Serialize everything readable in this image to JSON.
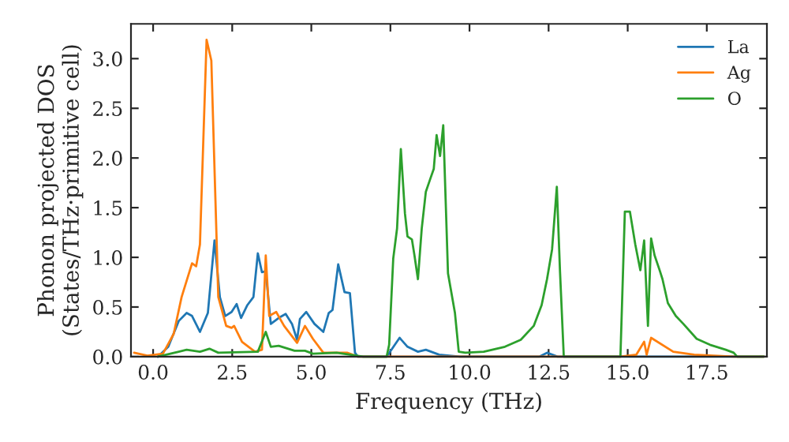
{
  "chart_data": {
    "type": "line",
    "xlabel": "Frequency (THz)",
    "ylabel": "Phonon projected DOS\n(States/THz·primitive cell)",
    "xlim": [
      -0.7,
      19.4
    ],
    "ylim": [
      0,
      3.35
    ],
    "xticks": [
      {
        "value": 0,
        "label": "0.0"
      },
      2.5,
      {
        "value": 5,
        "label": "5.0"
      },
      7.5,
      {
        "value": 10,
        "label": "10.0"
      },
      12.5,
      {
        "value": 15,
        "label": "15.0"
      },
      17.5
    ],
    "yticks": [
      {
        "value": 0,
        "label": "0.0"
      },
      0.5,
      {
        "value": 1,
        "label": "1.0"
      },
      1.5,
      {
        "value": 2,
        "label": "2.0"
      },
      2.5,
      {
        "value": 3,
        "label": "3.0"
      }
    ],
    "grid": false,
    "legend": "top right",
    "series": [
      {
        "name": "La",
        "color": "#1f77b4",
        "x": [
          0.15,
          0.48,
          0.81,
          1.06,
          1.23,
          1.48,
          1.73,
          1.94,
          2.11,
          2.28,
          2.48,
          2.64,
          2.78,
          2.98,
          3.17,
          3.31,
          3.44,
          3.56,
          3.72,
          3.97,
          4.19,
          4.39,
          4.55,
          4.64,
          4.84,
          5.1,
          5.38,
          5.55,
          5.67,
          5.85,
          6.05,
          6.22,
          6.38,
          6.47,
          7.38,
          7.79,
          8.04,
          8.37,
          8.62,
          9.04,
          9.7,
          12.2,
          12.45,
          12.78,
          19.3
        ],
        "values": [
          0,
          0.1,
          0.36,
          0.44,
          0.41,
          0.25,
          0.44,
          1.17,
          0.6,
          0.41,
          0.45,
          0.53,
          0.39,
          0.52,
          0.6,
          1.04,
          0.85,
          0.86,
          0.33,
          0.39,
          0.43,
          0.33,
          0.17,
          0.38,
          0.45,
          0.33,
          0.25,
          0.44,
          0.47,
          0.93,
          0.65,
          0.64,
          0.04,
          0,
          0,
          0.19,
          0.1,
          0.05,
          0.07,
          0.02,
          0,
          0,
          0.04,
          0,
          0
        ]
      },
      {
        "name": "Ag",
        "color": "#ff7f0e",
        "x": [
          -0.6,
          -0.18,
          0.31,
          0.65,
          0.9,
          1.23,
          1.36,
          1.48,
          1.69,
          1.84,
          2.06,
          2.31,
          2.48,
          2.56,
          2.81,
          3.22,
          3.44,
          3.56,
          3.67,
          3.89,
          4.14,
          4.55,
          4.8,
          5.05,
          5.38,
          6.13,
          6.47,
          14.77,
          15.27,
          15.52,
          15.6,
          15.74,
          16.44,
          17.1,
          18.35,
          19.3
        ],
        "values": [
          0.04,
          0.01,
          0.03,
          0.23,
          0.6,
          0.94,
          0.91,
          1.13,
          3.19,
          2.98,
          0.6,
          0.31,
          0.29,
          0.31,
          0.15,
          0.05,
          0.07,
          1.02,
          0.41,
          0.45,
          0.31,
          0.14,
          0.31,
          0.18,
          0.04,
          0.04,
          0,
          0,
          0.02,
          0.15,
          0.02,
          0.19,
          0.05,
          0.02,
          0,
          0
        ]
      },
      {
        "name": "O",
        "color": "#2ca02c",
        "x": [
          0.15,
          0.81,
          1.06,
          1.48,
          1.78,
          2.06,
          3.31,
          3.56,
          3.72,
          3.97,
          4.47,
          4.8,
          5.05,
          5.8,
          6.22,
          6.64,
          7.38,
          7.46,
          7.59,
          7.71,
          7.83,
          7.96,
          8.04,
          8.18,
          8.26,
          8.37,
          8.49,
          8.62,
          8.76,
          8.87,
          8.96,
          9.07,
          9.17,
          9.32,
          9.54,
          9.66,
          9.87,
          10.45,
          11.12,
          11.62,
          12.03,
          12.28,
          12.45,
          12.61,
          12.76,
          12.86,
          12.98,
          14.77,
          14.91,
          15.07,
          15.24,
          15.4,
          15.52,
          15.64,
          15.74,
          15.85,
          16.02,
          16.1,
          16.27,
          16.52,
          16.76,
          17.18,
          17.6,
          18.1,
          18.35,
          18.46,
          19.3
        ],
        "values": [
          0,
          0.05,
          0.07,
          0.05,
          0.08,
          0.04,
          0.05,
          0.25,
          0.1,
          0.11,
          0.06,
          0.06,
          0.03,
          0.04,
          0.02,
          0,
          0,
          0.12,
          0.99,
          1.29,
          2.09,
          1.44,
          1.21,
          1.18,
          1.02,
          0.78,
          1.29,
          1.66,
          1.79,
          1.89,
          2.23,
          2.02,
          2.33,
          0.84,
          0.44,
          0.05,
          0.04,
          0.05,
          0.1,
          0.17,
          0.31,
          0.52,
          0.78,
          1.08,
          1.71,
          0.86,
          0,
          0,
          1.46,
          1.46,
          1.13,
          0.87,
          1.17,
          0.31,
          1.19,
          1.02,
          0.86,
          0.78,
          0.54,
          0.41,
          0.33,
          0.18,
          0.12,
          0.07,
          0.04,
          0,
          0
        ]
      }
    ]
  }
}
